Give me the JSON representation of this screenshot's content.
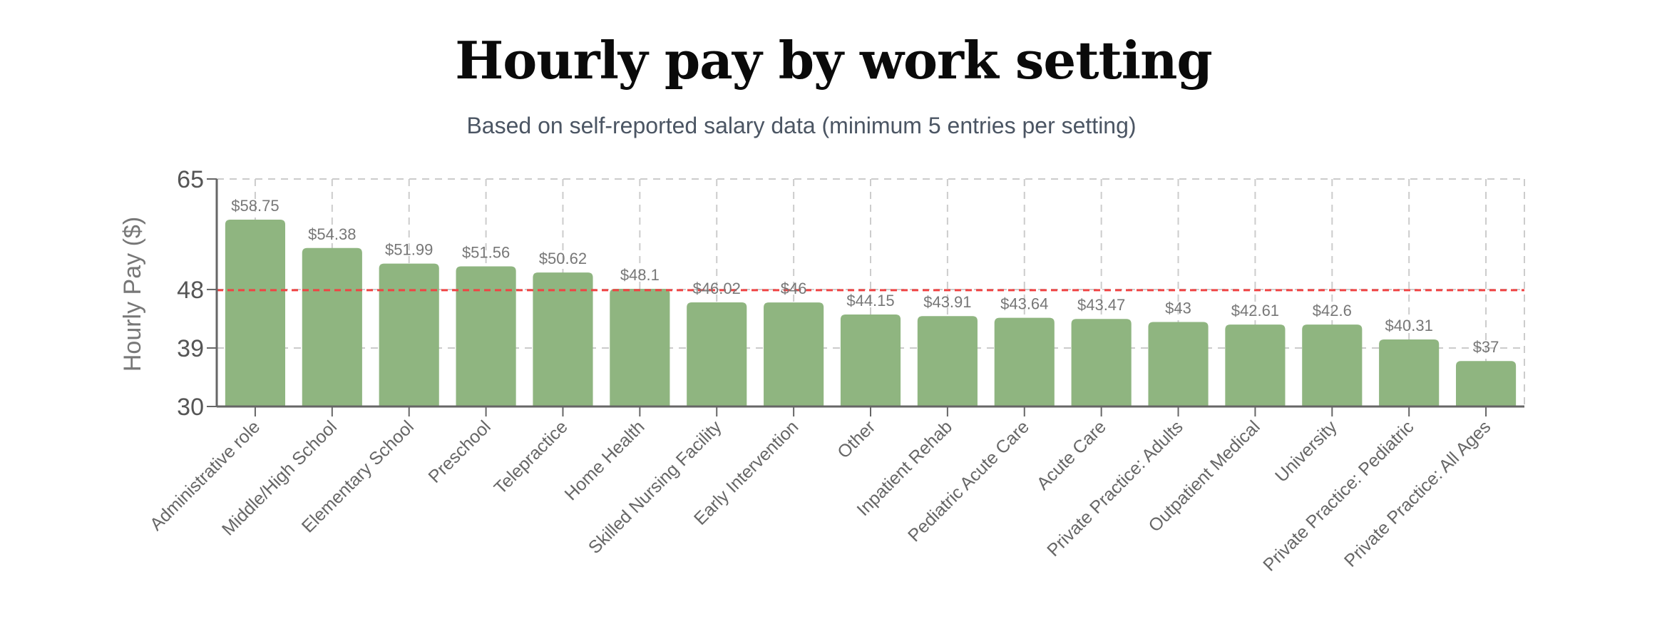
{
  "header": {
    "title": "Hourly pay by work setting",
    "subtitle": "Based on self-reported salary data (minimum 5 entries per setting)"
  },
  "chart_data": {
    "type": "bar",
    "title": "Hourly pay by work setting",
    "subtitle": "Based on self-reported salary data (minimum 5 entries per setting)",
    "xlabel": "",
    "ylabel": "Hourly Pay ($)",
    "ylim": [
      30,
      65
    ],
    "yticks": [
      30,
      39,
      48,
      65
    ],
    "grid": true,
    "categories": [
      "Administrative role",
      "Middle/High School",
      "Elementary School",
      "Preschool",
      "Telepractice",
      "Home Health",
      "Skilled Nursing Facility",
      "Early Intervention",
      "Other",
      "Inpatient Rehab",
      "Pediatric Acute Care",
      "Acute Care",
      "Private Practice: Adults",
      "Outpatient Medical",
      "University",
      "Private Practice: Pediatric",
      "Private Practice: All Ages"
    ],
    "values": [
      58.75,
      54.38,
      51.99,
      51.56,
      50.62,
      48.1,
      46.02,
      46,
      44.15,
      43.91,
      43.64,
      43.47,
      43,
      42.61,
      42.6,
      40.31,
      37
    ],
    "data_labels": [
      "$58.75",
      "$54.38",
      "$51.99",
      "$51.56",
      "$50.62",
      "$48.1",
      "$46.02",
      "$46",
      "$44.15",
      "$43.91",
      "$43.64",
      "$43.47",
      "$43",
      "$42.61",
      "$42.6",
      "$40.31",
      "$37"
    ],
    "reference_line": {
      "value": 47.9,
      "style": "dashed"
    },
    "colors": {
      "bar": "#8fb580",
      "reference_line": "#ef4444",
      "grid": "#cccccc",
      "axis": "#666666"
    }
  }
}
